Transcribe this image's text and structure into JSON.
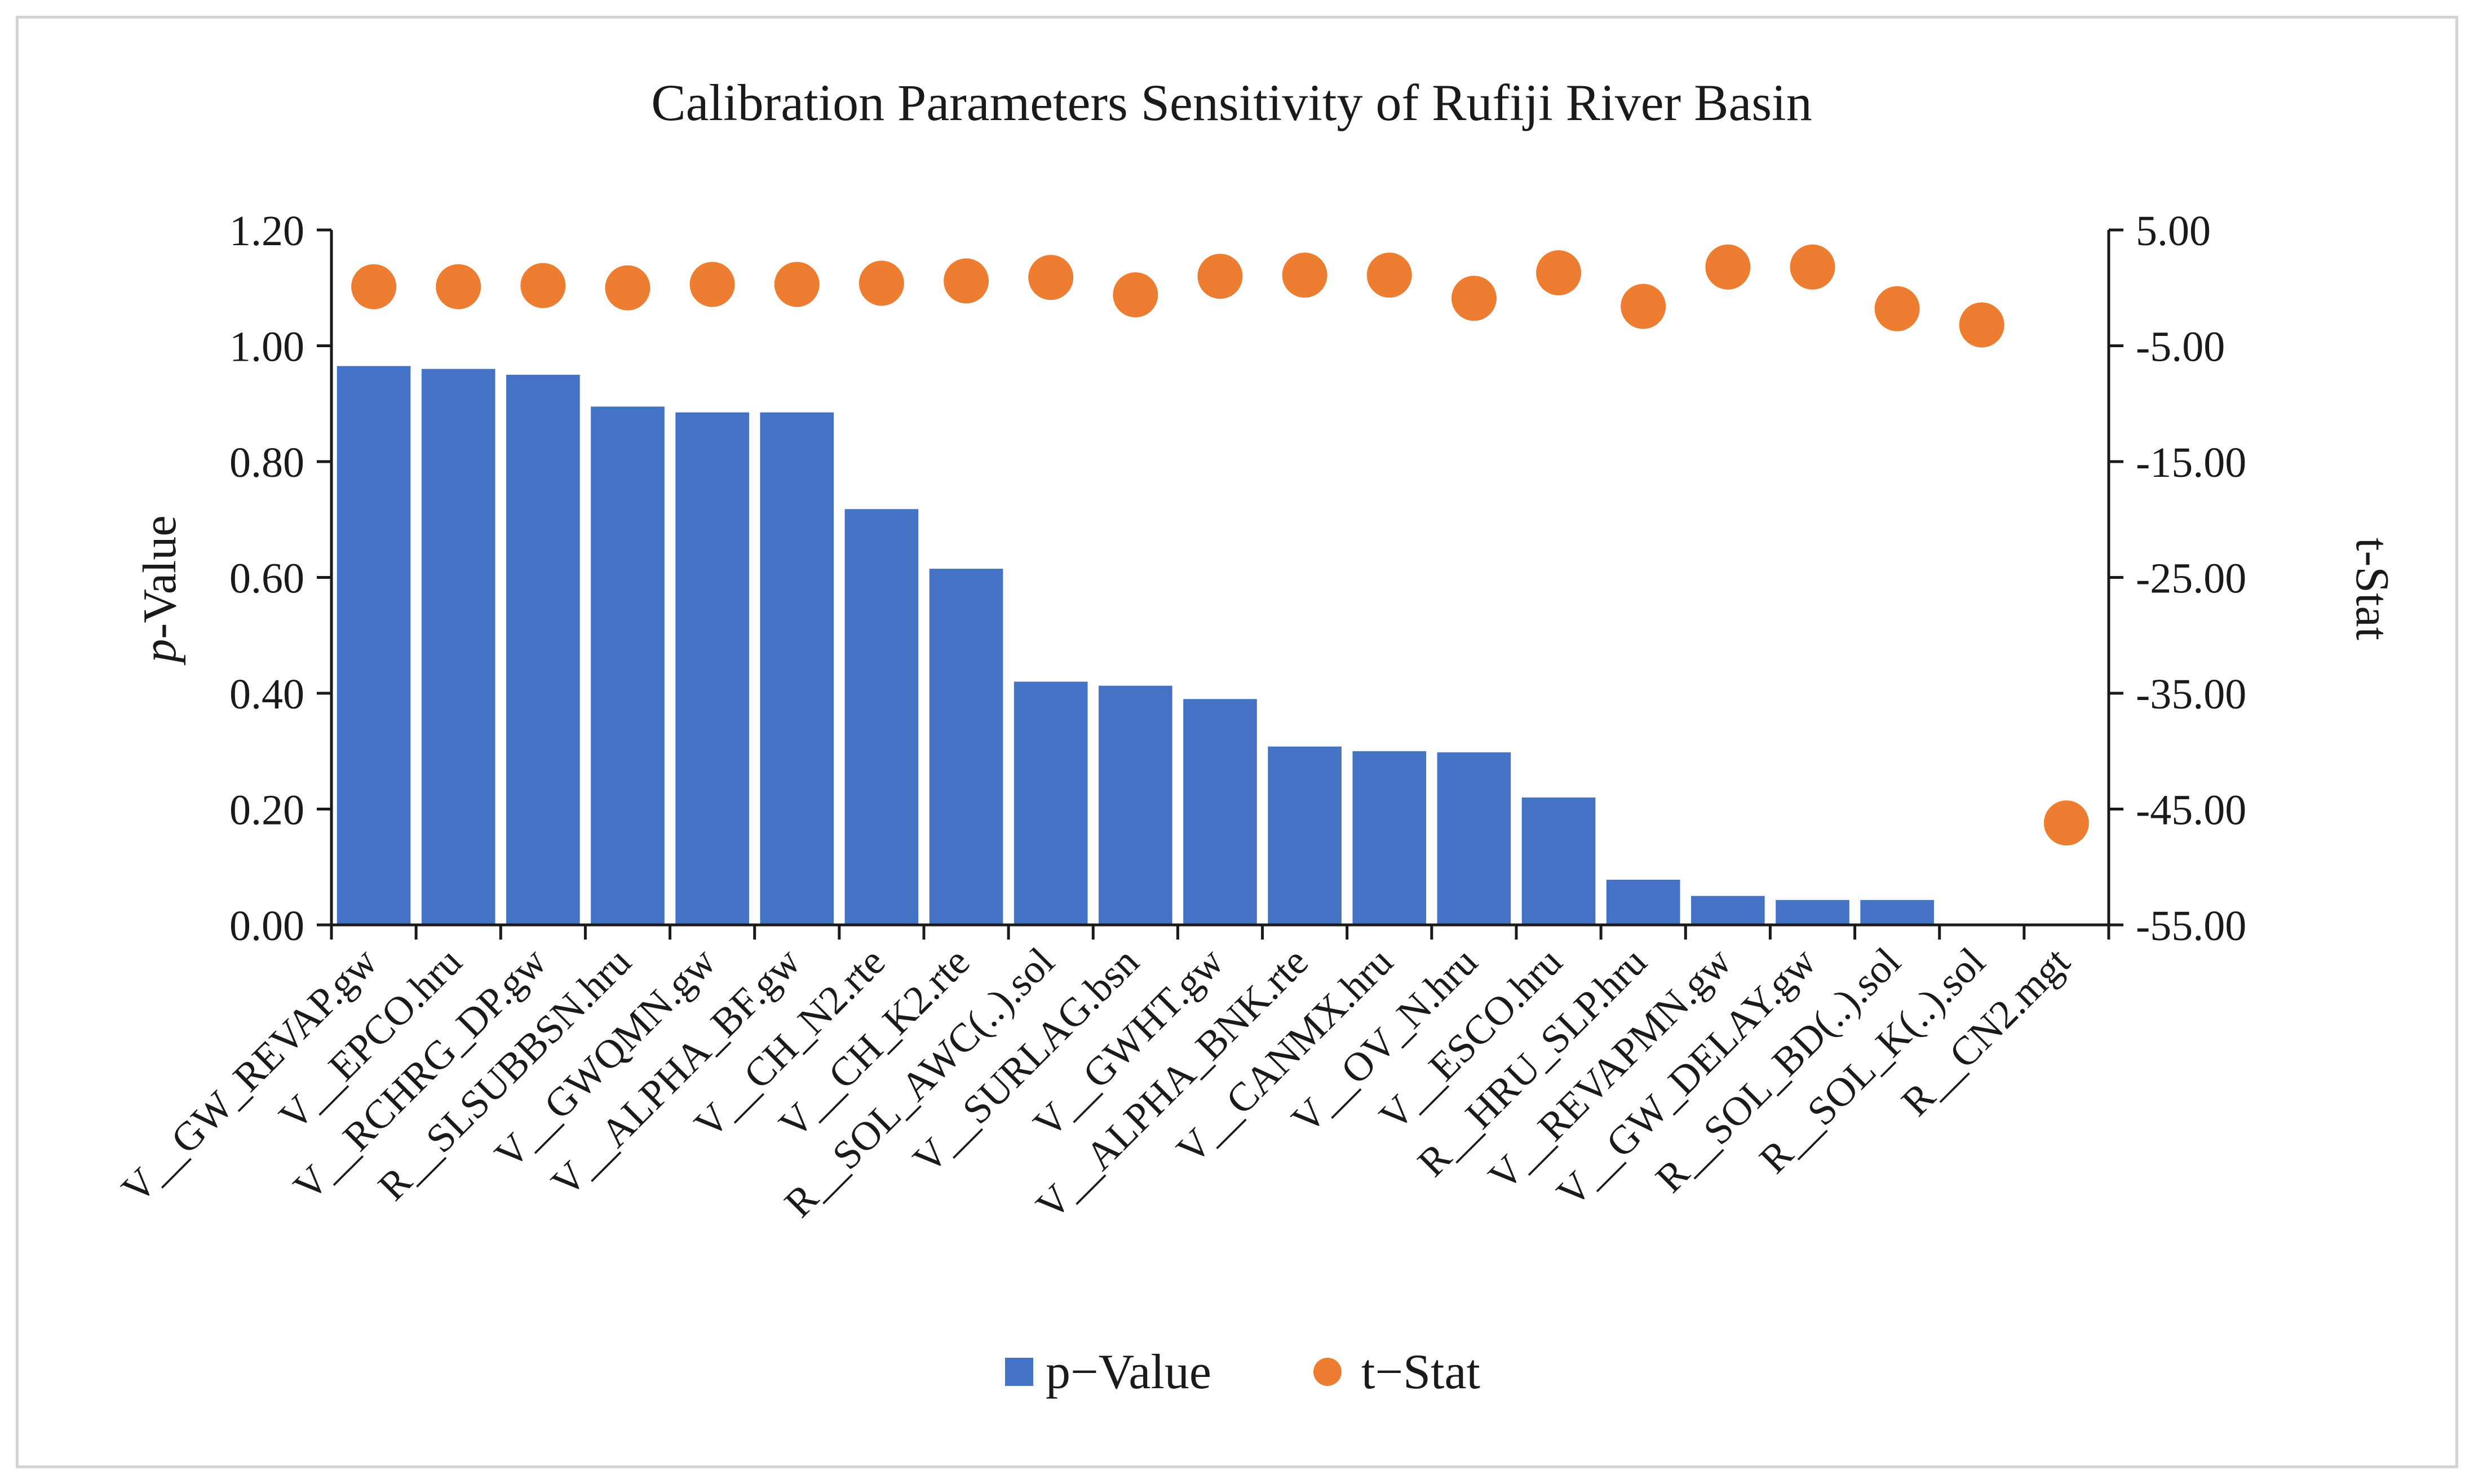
{
  "chart_data": {
    "type": "bar+scatter",
    "title": "Calibration Parameters Sensitivity of Rufiji River Basin",
    "ylabel_left_italic": "p",
    "ylabel_left_rest": "-Value",
    "ylabel_right": "t-Stat",
    "categories": [
      "V__GW_REVAP.gw",
      "V__EPCO.hru",
      "V__RCHRG_DP.gw",
      "R__SLSUBBSN.hru",
      "V__GWQMN.gw",
      "V__ALPHA_BF.gw",
      "V__CH_N2.rte",
      "V__CH_K2.rte",
      "R__SOL_AWC(..).sol",
      "V__SURLAG.bsn",
      "V__GWHT.gw",
      "V__ALPHA_BNK.rte",
      "V__CANMX.hru",
      "V__OV_N.hru",
      "V__ESCO.hru",
      "R__HRU_SLP.hru",
      "V__REVAPMN.gw",
      "V__GW_DELAY.gw",
      "R__SOL_BD(..).sol",
      "R__SOL_K(..).sol",
      "R__CN2.mgt"
    ],
    "series": [
      {
        "name": "p−Value",
        "axis": "left",
        "kind": "bar",
        "color": "#4472c4",
        "values": [
          0.965,
          0.96,
          0.95,
          0.895,
          0.885,
          0.885,
          0.718,
          0.615,
          0.42,
          0.413,
          0.39,
          0.308,
          0.3,
          0.298,
          0.22,
          0.078,
          0.05,
          0.043,
          0.043,
          0.0,
          0.0
        ]
      },
      {
        "name": "t−Stat",
        "axis": "right",
        "kind": "scatter",
        "color": "#ed7d31",
        "values": [
          0.1,
          0.1,
          0.2,
          0.0,
          0.3,
          0.3,
          0.4,
          0.6,
          0.9,
          -0.6,
          1.0,
          1.1,
          1.1,
          -0.9,
          1.3,
          -1.6,
          1.8,
          1.8,
          -1.8,
          -3.2,
          -46.2
        ]
      }
    ],
    "ylim_left": [
      0,
      1.2
    ],
    "yticks_left": [
      "0.00",
      "0.20",
      "0.40",
      "0.60",
      "0.80",
      "1.00",
      "1.20"
    ],
    "ylim_right": [
      -55,
      5
    ],
    "yticks_right": [
      "-55.00",
      "-45.00",
      "-35.00",
      "-25.00",
      "-15.00",
      "-5.00",
      "5.00"
    ],
    "legend": {
      "position": "bottom",
      "entries": [
        "p−Value",
        "t−Stat"
      ]
    },
    "grid": false
  }
}
